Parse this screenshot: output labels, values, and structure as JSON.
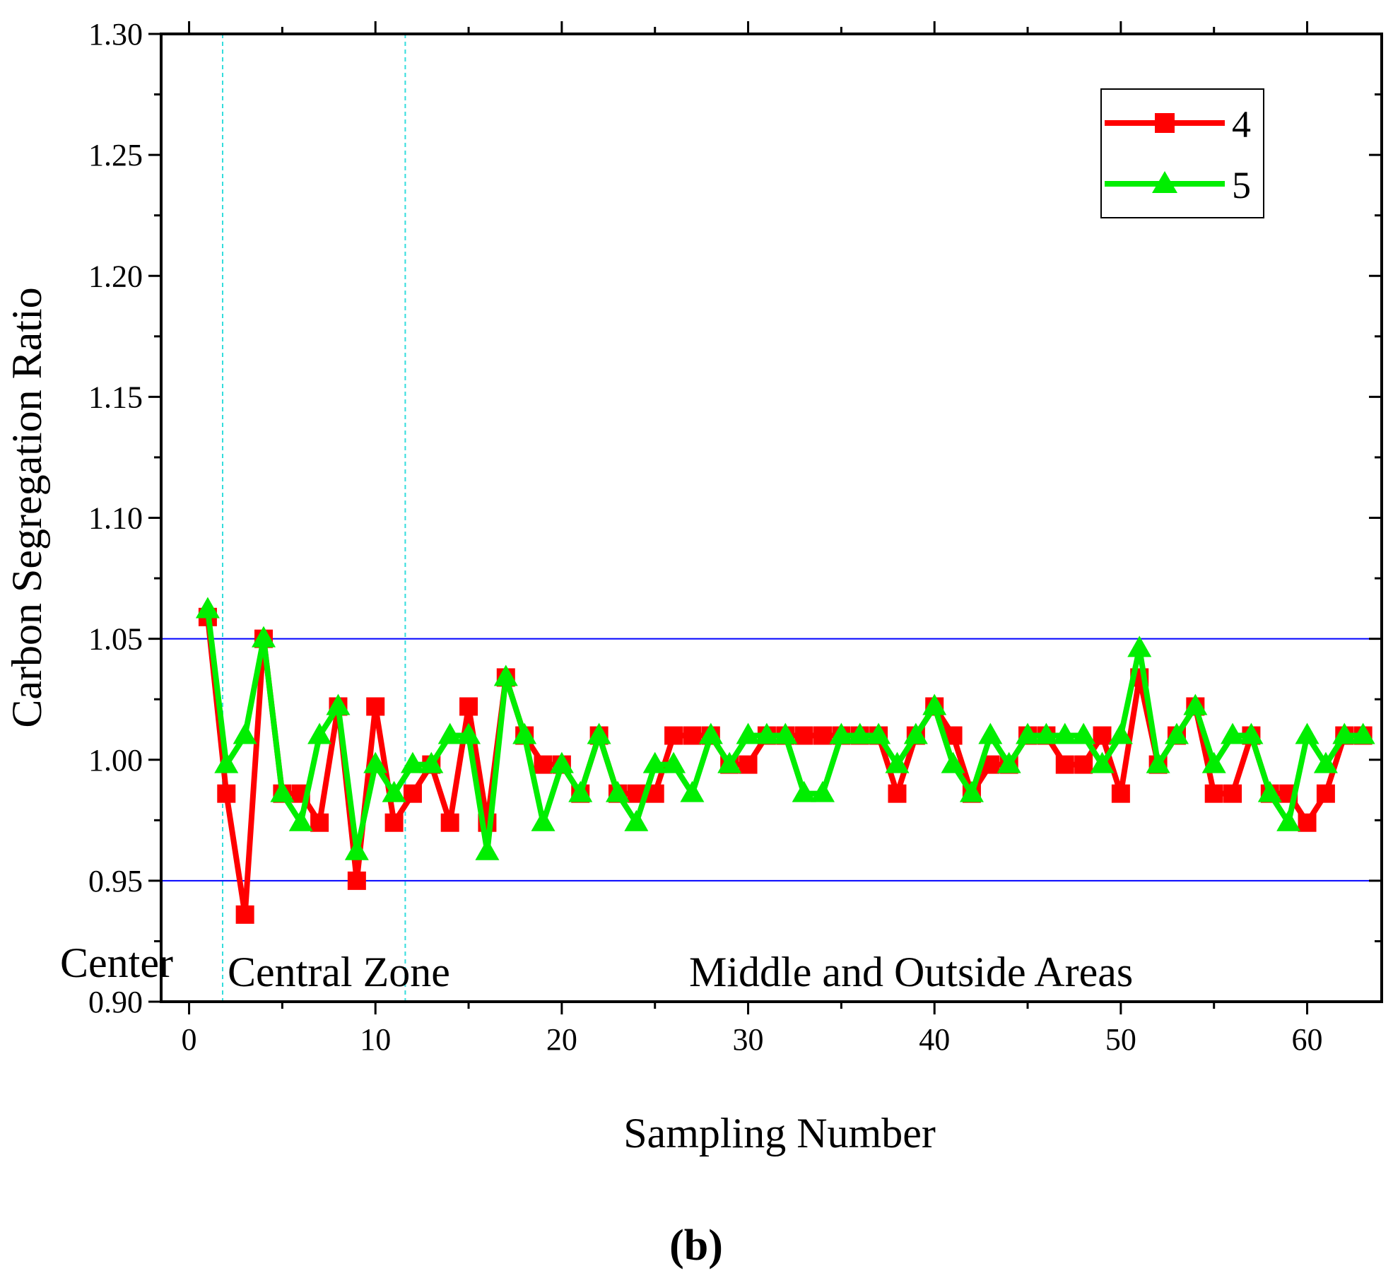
{
  "chart_data": {
    "type": "line",
    "xlabel": "Sampling Number",
    "ylabel": "Carbon Segregation Ratio",
    "xlim": [
      -1.5,
      64
    ],
    "ylim": [
      0.9,
      1.3
    ],
    "xticks": [
      0,
      10,
      20,
      30,
      40,
      50,
      60
    ],
    "yticks": [
      0.9,
      0.95,
      1.0,
      1.05,
      1.1,
      1.15,
      1.2,
      1.25,
      1.3
    ],
    "x_tick_labels": [
      "0",
      "10",
      "20",
      "30",
      "40",
      "50",
      "60"
    ],
    "y_tick_labels": [
      "0.90",
      "0.95",
      "1.00",
      "1.05",
      "1.10",
      "1.15",
      "1.20",
      "1.25",
      "1.30"
    ],
    "reference_lines": [
      {
        "axis": "y",
        "value": 1.05,
        "color": "#0000ff"
      },
      {
        "axis": "y",
        "value": 0.95,
        "color": "#0000ff"
      }
    ],
    "zone_dividers": [
      {
        "axis": "x",
        "value": 1.8,
        "color": "#33dddd",
        "style": "dashed"
      },
      {
        "axis": "x",
        "value": 11.6,
        "color": "#33dddd",
        "style": "dashed"
      }
    ],
    "annotations": [
      {
        "text": "Center",
        "anchor": "left of central zone"
      },
      {
        "text": "Central Zone",
        "anchor": "central zone"
      },
      {
        "text": "Middle and Outside Areas",
        "anchor": "outer zone"
      }
    ],
    "panel_label": "(b)",
    "legend": {
      "position": "top-right",
      "entries": [
        "4",
        "5"
      ]
    },
    "x": [
      1,
      2,
      3,
      4,
      5,
      6,
      7,
      8,
      9,
      10,
      11,
      12,
      13,
      14,
      15,
      16,
      17,
      18,
      19,
      20,
      21,
      22,
      23,
      24,
      25,
      26,
      27,
      28,
      29,
      30,
      31,
      32,
      33,
      34,
      35,
      36,
      37,
      38,
      39,
      40,
      41,
      42,
      43,
      44,
      45,
      46,
      47,
      48,
      49,
      50,
      51,
      52,
      53,
      54,
      55,
      56,
      57,
      58,
      59,
      60,
      61,
      62,
      63
    ],
    "series": [
      {
        "name": "4",
        "color": "#ff0000",
        "marker": "square",
        "values": [
          1.059,
          0.986,
          0.936,
          1.05,
          0.986,
          0.986,
          0.974,
          1.022,
          0.95,
          1.022,
          0.974,
          0.986,
          0.998,
          0.974,
          1.022,
          0.974,
          1.034,
          1.01,
          0.998,
          0.998,
          0.986,
          1.01,
          0.986,
          0.986,
          0.986,
          1.01,
          1.01,
          1.01,
          0.998,
          0.998,
          1.01,
          1.01,
          1.01,
          1.01,
          1.01,
          1.01,
          1.01,
          0.986,
          1.01,
          1.022,
          1.01,
          0.986,
          0.998,
          0.998,
          1.01,
          1.01,
          0.998,
          0.998,
          1.01,
          0.986,
          1.034,
          0.998,
          1.01,
          1.022,
          0.986,
          0.986,
          1.01,
          0.986,
          0.986,
          0.974,
          0.986,
          1.01,
          1.01
        ]
      },
      {
        "name": "5",
        "color": "#00ee00",
        "marker": "triangle",
        "values": [
          1.062,
          0.998,
          1.01,
          1.05,
          0.986,
          0.974,
          1.01,
          1.022,
          0.962,
          0.998,
          0.986,
          0.998,
          0.998,
          1.01,
          1.01,
          0.962,
          1.034,
          1.01,
          0.974,
          0.998,
          0.986,
          1.01,
          0.986,
          0.974,
          0.998,
          0.998,
          0.986,
          1.01,
          0.998,
          1.01,
          1.01,
          1.01,
          0.986,
          0.986,
          1.01,
          1.01,
          1.01,
          0.998,
          1.01,
          1.022,
          0.998,
          0.986,
          1.01,
          0.998,
          1.01,
          1.01,
          1.01,
          1.01,
          0.998,
          1.01,
          1.046,
          0.998,
          1.01,
          1.022,
          0.998,
          1.01,
          1.01,
          0.986,
          0.974,
          1.01,
          0.998,
          1.01,
          1.01
        ]
      }
    ]
  }
}
